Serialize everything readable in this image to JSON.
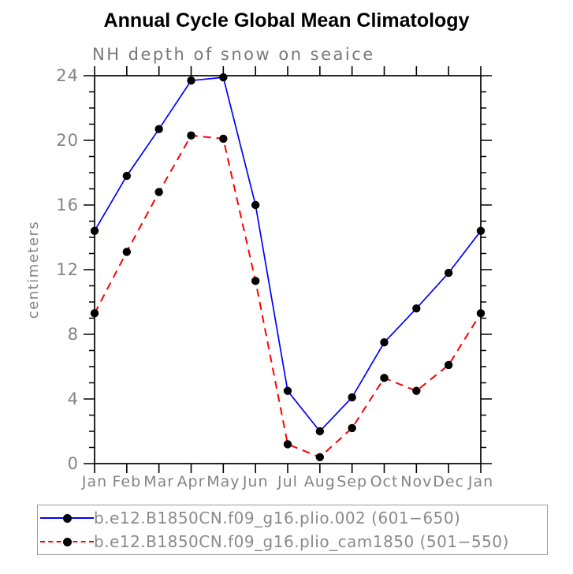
{
  "header": {
    "title": "Annual Cycle Global Mean Climatology",
    "subtitle": "NH depth of snow on seaice"
  },
  "chart_data": {
    "type": "line",
    "title": "Annual Cycle Global Mean Climatology",
    "subtitle": "NH depth of snow on seaice",
    "xlabel": "",
    "ylabel": "centimeters",
    "categories": [
      "Jan",
      "Feb",
      "Mar",
      "Apr",
      "May",
      "Jun",
      "Jul",
      "Aug",
      "Sep",
      "Oct",
      "Nov",
      "Dec",
      "Jan"
    ],
    "ylim": [
      0,
      24
    ],
    "yticks_major": [
      0,
      4,
      8,
      12,
      16,
      20,
      24
    ],
    "ytick_minor_step": 1,
    "grid": false,
    "legend_position": "bottom",
    "series": [
      {
        "name": "b.e12.B1850CN.f09_g16.plio.002 (601−650)",
        "color": "#0000ff",
        "style": "solid",
        "marker": "circle",
        "marker_color": "#000000",
        "values": [
          14.4,
          17.8,
          20.7,
          23.7,
          23.9,
          16.0,
          4.5,
          2.0,
          4.1,
          7.5,
          9.6,
          11.8,
          14.4
        ]
      },
      {
        "name": "b.e12.B1850CN.f09_g16.plio_cam1850 (501−550)",
        "color": "#ff0000",
        "style": "dashed",
        "marker": "circle",
        "marker_color": "#000000",
        "values": [
          9.3,
          13.1,
          16.8,
          20.3,
          20.1,
          11.3,
          1.2,
          0.4,
          2.2,
          5.3,
          4.5,
          6.1,
          9.3
        ]
      }
    ],
    "colors": {
      "axis": "#000000",
      "tick_label": "#848484",
      "subtitle_text": "#787878",
      "legend_border": "#9a9a9a",
      "legend_text": "#8a8a8a",
      "background": "#ffffff"
    }
  }
}
